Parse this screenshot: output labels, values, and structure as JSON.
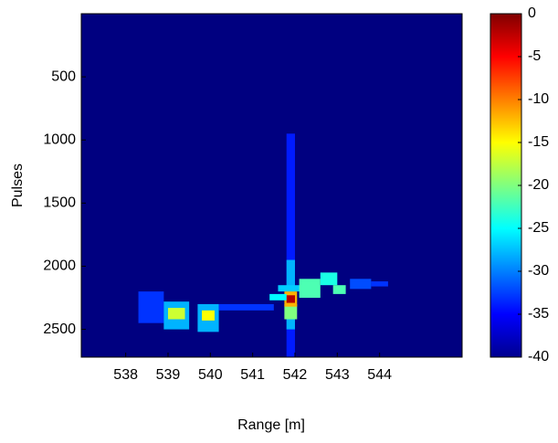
{
  "chart_data": {
    "type": "heatmap",
    "xlabel": "Range [m]",
    "ylabel": "Pulses",
    "xlim": [
      536.95,
      545.95
    ],
    "xticks": [
      538,
      539,
      540,
      541,
      542,
      543,
      544
    ],
    "ylim": [
      0,
      2720
    ],
    "yticks": [
      500,
      1000,
      1500,
      2000,
      2500
    ],
    "y_reversed": true,
    "clim": [
      -40,
      0
    ],
    "cticks": [
      0,
      -5,
      -10,
      -15,
      -20,
      -25,
      -30,
      -35,
      -40
    ],
    "colormap": "jet",
    "patches": [
      {
        "x": [
          541.8,
          542.0
        ],
        "y": [
          950,
          2720
        ],
        "value": -34
      },
      {
        "x": [
          541.8,
          542.0
        ],
        "y": [
          1950,
          2500
        ],
        "value": -28
      },
      {
        "x": [
          541.6,
          542.2
        ],
        "y": [
          2150,
          2200
        ],
        "value": -27
      },
      {
        "x": [
          541.75,
          542.05
        ],
        "y": [
          2300,
          2420
        ],
        "value": -20
      },
      {
        "x": [
          541.75,
          542.05
        ],
        "y": [
          2200,
          2320
        ],
        "value": -12
      },
      {
        "x": [
          541.8,
          542.0
        ],
        "y": [
          2230,
          2290
        ],
        "value": -2
      },
      {
        "x": [
          538.3,
          538.9
        ],
        "y": [
          2200,
          2450
        ],
        "value": -33
      },
      {
        "x": [
          538.9,
          539.5
        ],
        "y": [
          2280,
          2500
        ],
        "value": -28
      },
      {
        "x": [
          539.0,
          539.4
        ],
        "y": [
          2330,
          2420
        ],
        "value": -17
      },
      {
        "x": [
          539.7,
          540.2
        ],
        "y": [
          2300,
          2520
        ],
        "value": -28
      },
      {
        "x": [
          539.8,
          540.1
        ],
        "y": [
          2350,
          2430
        ],
        "value": -15
      },
      {
        "x": [
          540.2,
          541.5
        ],
        "y": [
          2300,
          2350
        ],
        "value": -33
      },
      {
        "x": [
          541.4,
          541.8
        ],
        "y": [
          2220,
          2270
        ],
        "value": -25
      },
      {
        "x": [
          542.1,
          542.6
        ],
        "y": [
          2100,
          2250
        ],
        "value": -22
      },
      {
        "x": [
          542.6,
          543.0
        ],
        "y": [
          2050,
          2150
        ],
        "value": -24
      },
      {
        "x": [
          542.9,
          543.2
        ],
        "y": [
          2150,
          2220
        ],
        "value": -22
      },
      {
        "x": [
          543.3,
          543.8
        ],
        "y": [
          2100,
          2180
        ],
        "value": -32
      },
      {
        "x": [
          543.8,
          544.2
        ],
        "y": [
          2120,
          2160
        ],
        "value": -33
      }
    ]
  }
}
